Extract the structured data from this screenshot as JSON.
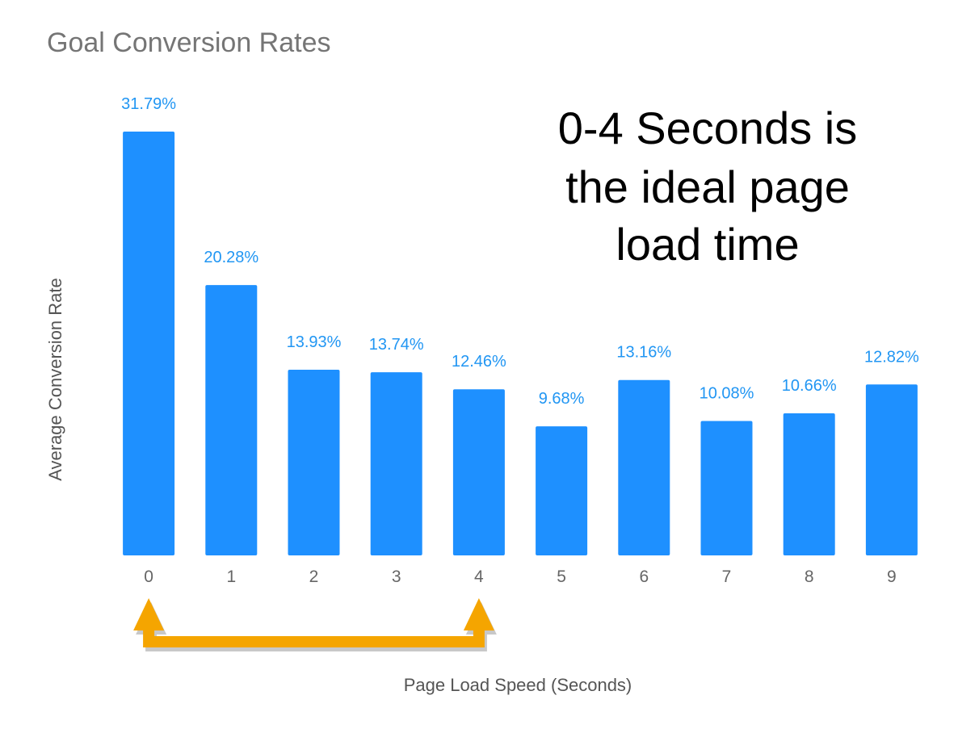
{
  "chart_data": {
    "type": "bar",
    "title": "Goal Conversion Rates",
    "xlabel": "Page Load Speed (Seconds)",
    "ylabel": "Average Conversion Rate",
    "categories": [
      "0",
      "1",
      "2",
      "3",
      "4",
      "5",
      "6",
      "7",
      "8",
      "9"
    ],
    "values": [
      31.79,
      20.28,
      13.93,
      13.74,
      12.46,
      9.68,
      13.16,
      10.08,
      10.66,
      12.82
    ],
    "data_labels": [
      "31.79%",
      "20.28%",
      "13.93%",
      "13.74%",
      "12.46%",
      "9.68%",
      "13.16%",
      "10.08%",
      "10.66%",
      "12.82%"
    ],
    "ylim": [
      0,
      31.79
    ],
    "grid": false,
    "legend": "none",
    "annotation": {
      "lines": [
        "0-4 Seconds is",
        "the ideal page",
        "load time"
      ],
      "bracket_from": "0",
      "bracket_to": "4"
    },
    "colors": {
      "bar": "#1e90ff",
      "data_label": "#2196f3",
      "arrow": "#f5a500",
      "arrow_shadow": "#b0b0b0"
    }
  }
}
